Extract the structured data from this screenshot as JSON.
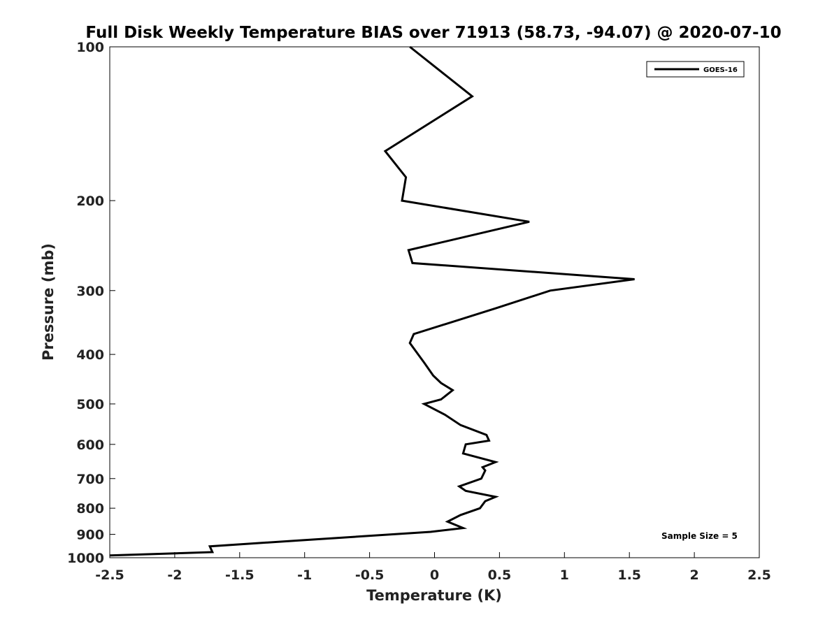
{
  "chart_data": {
    "type": "line",
    "title": "Full Disk Weekly Temperature BIAS over 71913 (58.73, -94.07) @ 2020-07-10",
    "xlabel": "Temperature (K)",
    "ylabel": "Pressure (mb)",
    "xlim": [
      -2.5,
      2.5
    ],
    "ylim": [
      100,
      1000
    ],
    "y_scale": "log",
    "y_reversed": true,
    "x_ticks": [
      "-2.5",
      "-2",
      "-1.5",
      "-1",
      "-0.5",
      "0",
      "0.5",
      "1",
      "1.5",
      "2",
      "2.5"
    ],
    "y_ticks": [
      "100",
      "200",
      "300",
      "400",
      "500",
      "600",
      "700",
      "800",
      "900",
      "1000"
    ],
    "grid": false,
    "legend_position": "top-right",
    "series": [
      {
        "name": "GOES-16",
        "color": "#000000",
        "points": [
          {
            "t": -0.19,
            "p": 100
          },
          {
            "t": 0.29,
            "p": 125
          },
          {
            "t": -0.38,
            "p": 160
          },
          {
            "t": -0.22,
            "p": 180
          },
          {
            "t": -0.25,
            "p": 200
          },
          {
            "t": 0.73,
            "p": 220
          },
          {
            "t": -0.2,
            "p": 250
          },
          {
            "t": -0.17,
            "p": 265
          },
          {
            "t": 1.54,
            "p": 285
          },
          {
            "t": 0.89,
            "p": 300
          },
          {
            "t": 0.47,
            "p": 325
          },
          {
            "t": -0.16,
            "p": 365
          },
          {
            "t": -0.19,
            "p": 380
          },
          {
            "t": -0.08,
            "p": 415
          },
          {
            "t": -0.01,
            "p": 440
          },
          {
            "t": 0.05,
            "p": 455
          },
          {
            "t": 0.14,
            "p": 470
          },
          {
            "t": 0.05,
            "p": 490
          },
          {
            "t": -0.08,
            "p": 500
          },
          {
            "t": 0.08,
            "p": 525
          },
          {
            "t": 0.2,
            "p": 550
          },
          {
            "t": 0.4,
            "p": 575
          },
          {
            "t": 0.42,
            "p": 590
          },
          {
            "t": 0.24,
            "p": 600
          },
          {
            "t": 0.22,
            "p": 625
          },
          {
            "t": 0.47,
            "p": 650
          },
          {
            "t": 0.37,
            "p": 665
          },
          {
            "t": 0.39,
            "p": 675
          },
          {
            "t": 0.36,
            "p": 700
          },
          {
            "t": 0.19,
            "p": 725
          },
          {
            "t": 0.24,
            "p": 740
          },
          {
            "t": 0.47,
            "p": 760
          },
          {
            "t": 0.39,
            "p": 775
          },
          {
            "t": 0.35,
            "p": 800
          },
          {
            "t": 0.2,
            "p": 825
          },
          {
            "t": 0.1,
            "p": 850
          },
          {
            "t": 0.22,
            "p": 875
          },
          {
            "t": -0.03,
            "p": 890
          },
          {
            "t": -1.04,
            "p": 925
          },
          {
            "t": -1.73,
            "p": 950
          },
          {
            "t": -1.71,
            "p": 975
          },
          {
            "t": -2.5,
            "p": 990
          }
        ]
      }
    ],
    "annotations": [
      {
        "text": "Sample Size = 5"
      }
    ]
  }
}
